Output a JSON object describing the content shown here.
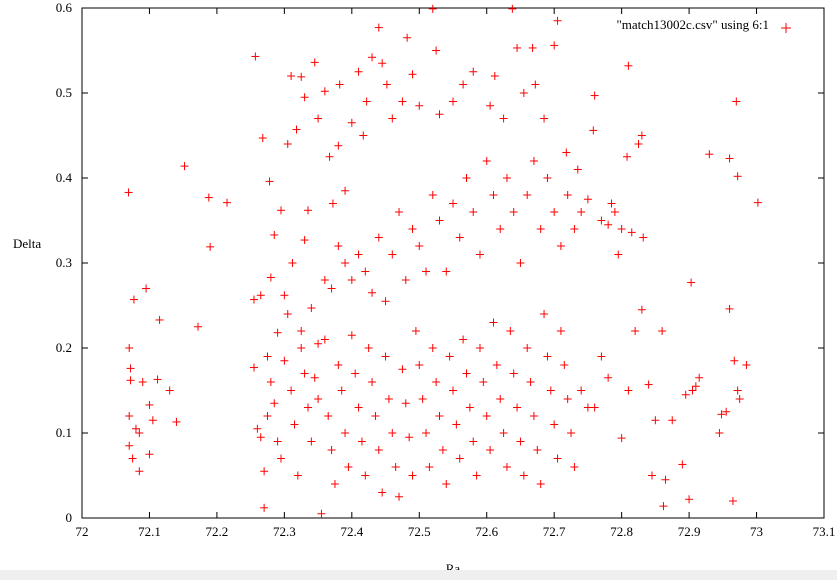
{
  "chart_data": {
    "type": "scatter",
    "xlabel": "Ra",
    "ylabel": "Delta",
    "xlim": [
      72,
      73.1
    ],
    "ylim": [
      0,
      0.6
    ],
    "x_ticks": [
      "72",
      "72.1",
      "72.2",
      "72.3",
      "72.4",
      "72.5",
      "72.6",
      "72.7",
      "72.8",
      "72.9",
      "73",
      "73.1"
    ],
    "y_ticks": [
      "0",
      "0.1",
      "0.2",
      "0.3",
      "0.4",
      "0.5",
      "0.6"
    ],
    "legend": {
      "label": "\"match13002c.csv\" using 6:1",
      "position": "top-right"
    },
    "grid": false,
    "marker": "+",
    "color": "#ff0000",
    "series": [
      {
        "name": "\"match13002c.csv\" using 6:1",
        "points": [
          [
            72.069,
            0.383
          ],
          [
            72.077,
            0.257
          ],
          [
            72.095,
            0.27
          ],
          [
            72.115,
            0.233
          ],
          [
            72.07,
            0.2
          ],
          [
            72.072,
            0.176
          ],
          [
            72.072,
            0.162
          ],
          [
            72.07,
            0.12
          ],
          [
            72.07,
            0.085
          ],
          [
            72.075,
            0.07
          ],
          [
            72.08,
            0.105
          ],
          [
            72.085,
            0.1
          ],
          [
            72.085,
            0.055
          ],
          [
            72.09,
            0.16
          ],
          [
            72.1,
            0.075
          ],
          [
            72.1,
            0.133
          ],
          [
            72.105,
            0.115
          ],
          [
            72.112,
            0.163
          ],
          [
            72.13,
            0.15
          ],
          [
            72.14,
            0.113
          ],
          [
            72.152,
            0.414
          ],
          [
            72.172,
            0.225
          ],
          [
            72.188,
            0.377
          ],
          [
            72.19,
            0.319
          ],
          [
            72.215,
            0.371
          ],
          [
            72.257,
            0.543
          ],
          [
            72.268,
            0.447
          ],
          [
            72.278,
            0.396
          ],
          [
            72.285,
            0.333
          ],
          [
            72.295,
            0.362
          ],
          [
            72.305,
            0.44
          ],
          [
            72.31,
            0.52
          ],
          [
            72.318,
            0.457
          ],
          [
            72.325,
            0.519
          ],
          [
            72.33,
            0.495
          ],
          [
            72.335,
            0.362
          ],
          [
            72.33,
            0.327
          ],
          [
            72.345,
            0.536
          ],
          [
            72.35,
            0.47
          ],
          [
            72.36,
            0.502
          ],
          [
            72.367,
            0.425
          ],
          [
            72.372,
            0.37
          ],
          [
            72.38,
            0.438
          ],
          [
            72.382,
            0.51
          ],
          [
            72.39,
            0.385
          ],
          [
            72.4,
            0.465
          ],
          [
            72.41,
            0.525
          ],
          [
            72.417,
            0.45
          ],
          [
            72.422,
            0.49
          ],
          [
            72.43,
            0.542
          ],
          [
            72.44,
            0.577
          ],
          [
            72.445,
            0.535
          ],
          [
            72.452,
            0.51
          ],
          [
            72.46,
            0.47
          ],
          [
            72.475,
            0.49
          ],
          [
            72.482,
            0.565
          ],
          [
            72.49,
            0.522
          ],
          [
            72.5,
            0.485
          ],
          [
            72.52,
            0.599
          ],
          [
            72.525,
            0.55
          ],
          [
            72.53,
            0.475
          ],
          [
            72.55,
            0.49
          ],
          [
            72.565,
            0.51
          ],
          [
            72.58,
            0.525
          ],
          [
            72.605,
            0.485
          ],
          [
            72.612,
            0.52
          ],
          [
            72.625,
            0.47
          ],
          [
            72.638,
            0.599
          ],
          [
            72.645,
            0.553
          ],
          [
            72.655,
            0.5
          ],
          [
            72.668,
            0.553
          ],
          [
            72.672,
            0.51
          ],
          [
            72.685,
            0.47
          ],
          [
            72.7,
            0.556
          ],
          [
            72.705,
            0.585
          ],
          [
            72.718,
            0.43
          ],
          [
            72.735,
            0.41
          ],
          [
            72.758,
            0.456
          ],
          [
            72.76,
            0.497
          ],
          [
            72.81,
            0.532
          ],
          [
            72.825,
            0.44
          ],
          [
            72.83,
            0.45
          ],
          [
            72.808,
            0.425
          ],
          [
            72.785,
            0.37
          ],
          [
            72.8,
            0.34
          ],
          [
            72.815,
            0.336
          ],
          [
            72.832,
            0.33
          ],
          [
            72.93,
            0.428
          ],
          [
            72.96,
            0.423
          ],
          [
            72.97,
            0.49
          ],
          [
            72.972,
            0.402
          ],
          [
            73.002,
            0.371
          ],
          [
            72.255,
            0.257
          ],
          [
            72.265,
            0.262
          ],
          [
            72.275,
            0.19
          ],
          [
            72.28,
            0.283
          ],
          [
            72.29,
            0.218
          ],
          [
            72.3,
            0.262
          ],
          [
            72.305,
            0.24
          ],
          [
            72.312,
            0.3
          ],
          [
            72.325,
            0.22
          ],
          [
            72.34,
            0.247
          ],
          [
            72.35,
            0.205
          ],
          [
            72.36,
            0.28
          ],
          [
            72.37,
            0.27
          ],
          [
            72.38,
            0.32
          ],
          [
            72.39,
            0.3
          ],
          [
            72.4,
            0.28
          ],
          [
            72.41,
            0.31
          ],
          [
            72.42,
            0.29
          ],
          [
            72.43,
            0.265
          ],
          [
            72.44,
            0.33
          ],
          [
            72.45,
            0.255
          ],
          [
            72.46,
            0.31
          ],
          [
            72.47,
            0.36
          ],
          [
            72.48,
            0.28
          ],
          [
            72.49,
            0.34
          ],
          [
            72.5,
            0.32
          ],
          [
            72.51,
            0.29
          ],
          [
            72.52,
            0.38
          ],
          [
            72.53,
            0.35
          ],
          [
            72.54,
            0.29
          ],
          [
            72.55,
            0.37
          ],
          [
            72.56,
            0.33
          ],
          [
            72.57,
            0.4
          ],
          [
            72.58,
            0.36
          ],
          [
            72.59,
            0.31
          ],
          [
            72.6,
            0.42
          ],
          [
            72.61,
            0.38
          ],
          [
            72.62,
            0.34
          ],
          [
            72.63,
            0.4
          ],
          [
            72.64,
            0.36
          ],
          [
            72.65,
            0.3
          ],
          [
            72.66,
            0.38
          ],
          [
            72.67,
            0.42
          ],
          [
            72.68,
            0.34
          ],
          [
            72.69,
            0.4
          ],
          [
            72.7,
            0.36
          ],
          [
            72.71,
            0.32
          ],
          [
            72.72,
            0.38
          ],
          [
            72.73,
            0.34
          ],
          [
            72.74,
            0.36
          ],
          [
            72.75,
            0.375
          ],
          [
            72.77,
            0.35
          ],
          [
            72.78,
            0.345
          ],
          [
            72.79,
            0.36
          ],
          [
            72.795,
            0.31
          ],
          [
            72.255,
            0.177
          ],
          [
            72.26,
            0.105
          ],
          [
            72.265,
            0.095
          ],
          [
            72.27,
            0.055
          ],
          [
            72.275,
            0.12
          ],
          [
            72.28,
            0.16
          ],
          [
            72.285,
            0.135
          ],
          [
            72.29,
            0.09
          ],
          [
            72.295,
            0.07
          ],
          [
            72.3,
            0.185
          ],
          [
            72.31,
            0.15
          ],
          [
            72.315,
            0.11
          ],
          [
            72.32,
            0.05
          ],
          [
            72.325,
            0.2
          ],
          [
            72.33,
            0.17
          ],
          [
            72.335,
            0.13
          ],
          [
            72.34,
            0.09
          ],
          [
            72.345,
            0.165
          ],
          [
            72.35,
            0.14
          ],
          [
            72.355,
            0.005
          ],
          [
            72.36,
            0.21
          ],
          [
            72.365,
            0.12
          ],
          [
            72.37,
            0.08
          ],
          [
            72.375,
            0.04
          ],
          [
            72.38,
            0.18
          ],
          [
            72.385,
            0.15
          ],
          [
            72.39,
            0.1
          ],
          [
            72.395,
            0.06
          ],
          [
            72.4,
            0.215
          ],
          [
            72.405,
            0.17
          ],
          [
            72.41,
            0.13
          ],
          [
            72.415,
            0.09
          ],
          [
            72.42,
            0.05
          ],
          [
            72.425,
            0.2
          ],
          [
            72.43,
            0.16
          ],
          [
            72.435,
            0.12
          ],
          [
            72.44,
            0.08
          ],
          [
            72.445,
            0.03
          ],
          [
            72.45,
            0.19
          ],
          [
            72.455,
            0.14
          ],
          [
            72.46,
            0.1
          ],
          [
            72.465,
            0.06
          ],
          [
            72.47,
            0.025
          ],
          [
            72.475,
            0.175
          ],
          [
            72.48,
            0.135
          ],
          [
            72.485,
            0.095
          ],
          [
            72.49,
            0.05
          ],
          [
            72.495,
            0.22
          ],
          [
            72.5,
            0.18
          ],
          [
            72.505,
            0.14
          ],
          [
            72.51,
            0.1
          ],
          [
            72.515,
            0.06
          ],
          [
            72.52,
            0.2
          ],
          [
            72.525,
            0.16
          ],
          [
            72.53,
            0.12
          ],
          [
            72.535,
            0.08
          ],
          [
            72.54,
            0.04
          ],
          [
            72.545,
            0.19
          ],
          [
            72.55,
            0.15
          ],
          [
            72.555,
            0.11
          ],
          [
            72.56,
            0.07
          ],
          [
            72.565,
            0.21
          ],
          [
            72.57,
            0.17
          ],
          [
            72.575,
            0.13
          ],
          [
            72.58,
            0.09
          ],
          [
            72.585,
            0.05
          ],
          [
            72.59,
            0.2
          ],
          [
            72.595,
            0.16
          ],
          [
            72.6,
            0.12
          ],
          [
            72.605,
            0.08
          ],
          [
            72.61,
            0.23
          ],
          [
            72.615,
            0.18
          ],
          [
            72.62,
            0.14
          ],
          [
            72.625,
            0.1
          ],
          [
            72.63,
            0.06
          ],
          [
            72.635,
            0.22
          ],
          [
            72.64,
            0.17
          ],
          [
            72.645,
            0.13
          ],
          [
            72.65,
            0.09
          ],
          [
            72.655,
            0.05
          ],
          [
            72.66,
            0.2
          ],
          [
            72.665,
            0.16
          ],
          [
            72.67,
            0.12
          ],
          [
            72.675,
            0.08
          ],
          [
            72.68,
            0.04
          ],
          [
            72.685,
            0.24
          ],
          [
            72.69,
            0.19
          ],
          [
            72.695,
            0.15
          ],
          [
            72.7,
            0.11
          ],
          [
            72.705,
            0.07
          ],
          [
            72.71,
            0.22
          ],
          [
            72.715,
            0.18
          ],
          [
            72.72,
            0.14
          ],
          [
            72.725,
            0.1
          ],
          [
            72.73,
            0.06
          ],
          [
            72.74,
            0.15
          ],
          [
            72.75,
            0.13
          ],
          [
            72.76,
            0.13
          ],
          [
            72.77,
            0.19
          ],
          [
            72.78,
            0.165
          ],
          [
            72.8,
            0.094
          ],
          [
            72.81,
            0.15
          ],
          [
            72.82,
            0.22
          ],
          [
            72.83,
            0.245
          ],
          [
            72.84,
            0.157
          ],
          [
            72.845,
            0.05
          ],
          [
            72.85,
            0.115
          ],
          [
            72.86,
            0.22
          ],
          [
            72.865,
            0.045
          ],
          [
            72.862,
            0.014
          ],
          [
            72.875,
            0.115
          ],
          [
            72.89,
            0.063
          ],
          [
            72.895,
            0.145
          ],
          [
            72.9,
            0.022
          ],
          [
            72.903,
            0.277
          ],
          [
            72.905,
            0.15
          ],
          [
            72.91,
            0.155
          ],
          [
            72.915,
            0.165
          ],
          [
            72.945,
            0.1
          ],
          [
            72.948,
            0.122
          ],
          [
            72.955,
            0.125
          ],
          [
            72.96,
            0.246
          ],
          [
            72.965,
            0.02
          ],
          [
            72.967,
            0.185
          ],
          [
            72.972,
            0.15
          ],
          [
            72.975,
            0.14
          ],
          [
            72.985,
            0.18
          ],
          [
            72.27,
            0.012
          ]
        ]
      }
    ]
  }
}
